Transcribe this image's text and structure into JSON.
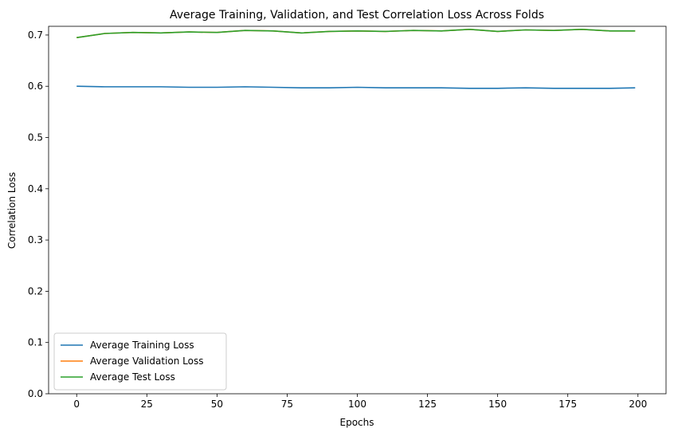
{
  "chart_data": {
    "type": "line",
    "title": "Average Training, Validation, and Test Correlation Loss Across Folds",
    "xlabel": "Epochs",
    "ylabel": "Correlation Loss",
    "xlim": [
      -10,
      210
    ],
    "ylim": [
      0.0,
      0.717
    ],
    "xticks": [
      0,
      25,
      50,
      75,
      100,
      125,
      150,
      175,
      200
    ],
    "yticks": [
      0.0,
      0.1,
      0.2,
      0.3,
      0.4,
      0.5,
      0.6,
      0.7
    ],
    "ytick_labels": [
      "0.0",
      "0.1",
      "0.2",
      "0.3",
      "0.4",
      "0.5",
      "0.6",
      "0.7"
    ],
    "grid": false,
    "legend_position": "lower-left",
    "series": [
      {
        "name": "Average Training Loss",
        "color": "#1f77b4",
        "x": [
          0,
          10,
          20,
          30,
          40,
          50,
          60,
          70,
          80,
          90,
          100,
          110,
          120,
          130,
          140,
          150,
          160,
          170,
          180,
          190,
          199
        ],
        "values": [
          0.6,
          0.599,
          0.599,
          0.599,
          0.598,
          0.598,
          0.599,
          0.598,
          0.597,
          0.597,
          0.598,
          0.597,
          0.597,
          0.597,
          0.596,
          0.596,
          0.597,
          0.596,
          0.596,
          0.596,
          0.597
        ]
      },
      {
        "name": "Average Validation Loss",
        "color": "#ff7f0e",
        "x": [
          0,
          10,
          20,
          30,
          40,
          50,
          60,
          70,
          80,
          90,
          100,
          110,
          120,
          130,
          140,
          150,
          160,
          170,
          180,
          190,
          199
        ],
        "values": [
          0.695,
          0.703,
          0.705,
          0.704,
          0.706,
          0.705,
          0.709,
          0.708,
          0.704,
          0.707,
          0.708,
          0.707,
          0.709,
          0.708,
          0.711,
          0.707,
          0.71,
          0.709,
          0.711,
          0.708,
          0.708
        ]
      },
      {
        "name": "Average Test Loss",
        "color": "#2ca02c",
        "x": [
          0,
          10,
          20,
          30,
          40,
          50,
          60,
          70,
          80,
          90,
          100,
          110,
          120,
          130,
          140,
          150,
          160,
          170,
          180,
          190,
          199
        ],
        "values": [
          0.695,
          0.703,
          0.705,
          0.704,
          0.706,
          0.705,
          0.709,
          0.708,
          0.704,
          0.707,
          0.708,
          0.707,
          0.709,
          0.708,
          0.711,
          0.707,
          0.71,
          0.709,
          0.711,
          0.708,
          0.708
        ]
      }
    ]
  }
}
